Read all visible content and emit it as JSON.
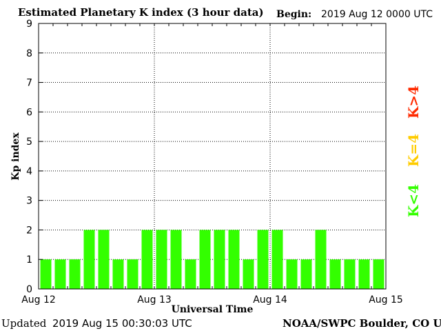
{
  "header": {
    "title": "Estimated Planetary K index (3 hour data)",
    "begin_label": "Begin:",
    "begin_value": "2019 Aug 12 0000 UTC"
  },
  "footer": {
    "updated_label": "Updated",
    "updated_value": "2019 Aug 15 00:30:03 UTC",
    "credit": "NOAA/SWPC Boulder, CO USA"
  },
  "legend": {
    "gt4": {
      "label": "K>4",
      "color": "#ff2a00"
    },
    "eq4": {
      "label": "K=4",
      "color": "#ffcc00"
    },
    "lt4": {
      "label": "K<4",
      "color": "#33ff00"
    }
  },
  "chart_data": {
    "type": "bar",
    "title": "Estimated Planetary K index (3 hour data)",
    "xlabel": "Universal Time",
    "ylabel": "Kp index",
    "ylim": [
      0,
      9
    ],
    "yticks": [
      0,
      1,
      2,
      3,
      4,
      5,
      6,
      7,
      8,
      9
    ],
    "x_tick_labels": [
      "Aug 12",
      "Aug 13",
      "Aug 14",
      "Aug 15"
    ],
    "interval_hours": 3,
    "grid": true,
    "values": [
      1,
      1,
      1,
      2,
      2,
      1,
      1,
      2,
      2,
      2,
      1,
      2,
      2,
      2,
      1,
      2,
      2,
      1,
      1,
      2,
      1,
      1,
      1,
      1
    ],
    "bar_color": "#33ff00"
  }
}
